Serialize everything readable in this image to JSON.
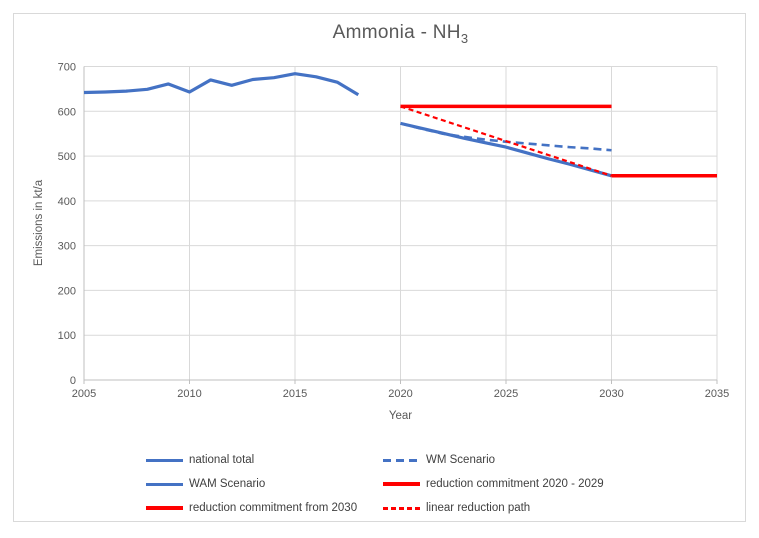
{
  "title": {
    "main": "Ammonia - NH",
    "subscript": "3"
  },
  "y_axis": {
    "label": "Emissions in kt/a"
  },
  "x_axis": {
    "label": "Year"
  },
  "colors": {
    "series_blue": "#4472C4",
    "series_red": "#FF0000",
    "gridline": "#d9d9d9",
    "axis_line": "#bfbfbf",
    "tick_text": "#595959",
    "title_text": "#595959",
    "legend_text": "#404040"
  },
  "chart_data": {
    "type": "line",
    "title": "Ammonia - NH3",
    "xlabel": "Year",
    "ylabel": "Emissions in kt/a",
    "xlim": [
      2005,
      2035
    ],
    "ylim": [
      0,
      700
    ],
    "x_ticks": [
      2005,
      2010,
      2015,
      2020,
      2025,
      2030,
      2035
    ],
    "y_ticks": [
      0,
      100,
      200,
      300,
      400,
      500,
      600,
      700
    ],
    "grid": true,
    "legend_position": "bottom",
    "series": [
      {
        "id": "national-total",
        "name": "national total",
        "color": "#4472C4",
        "style": "solid",
        "width": 3.2,
        "dash": "",
        "x": [
          2005,
          2006,
          2007,
          2008,
          2009,
          2010,
          2011,
          2012,
          2013,
          2014,
          2015,
          2016,
          2017,
          2018
        ],
        "values": [
          642,
          643,
          645,
          649,
          661,
          643,
          670,
          658,
          671,
          675,
          684,
          677,
          665,
          637
        ]
      },
      {
        "id": "wm-scenario",
        "name": "WM Scenario",
        "color": "#4472C4",
        "style": "dashed",
        "width": 2.6,
        "dash": "8 5",
        "x": [
          2020,
          2021,
          2022,
          2023,
          2024,
          2025,
          2026,
          2027,
          2028,
          2029,
          2030
        ],
        "values": [
          573,
          561,
          550,
          543,
          537,
          532,
          528,
          524,
          520,
          517,
          513
        ]
      },
      {
        "id": "wam-scenario",
        "name": "WAM Scenario",
        "color": "#4472C4",
        "style": "solid",
        "width": 3.2,
        "dash": "",
        "x": [
          2020,
          2021,
          2022,
          2023,
          2024,
          2025,
          2026,
          2027,
          2028,
          2029,
          2030
        ],
        "values": [
          573,
          562,
          551,
          540,
          530,
          520,
          507,
          494,
          482,
          469,
          456
        ]
      },
      {
        "id": "reduction-commitment-2020-2029",
        "name": "reduction commitment 2020 - 2029",
        "color": "#FF0000",
        "style": "solid",
        "width": 3.5,
        "dash": "",
        "x": [
          2020,
          2030
        ],
        "values": [
          611,
          611
        ]
      },
      {
        "id": "reduction-commitment-from-2030",
        "name": "reduction commitment from 2030",
        "color": "#FF0000",
        "style": "solid",
        "width": 3.5,
        "dash": "",
        "x": [
          2030,
          2035
        ],
        "values": [
          456,
          456
        ]
      },
      {
        "id": "linear-reduction-path",
        "name": "linear reduction path",
        "color": "#FF0000",
        "style": "dashed",
        "width": 2.2,
        "dash": "5 3.5",
        "x": [
          2020,
          2030
        ],
        "values": [
          611,
          456
        ]
      }
    ]
  },
  "legend": {
    "items": [
      {
        "label": "national total",
        "swatch": "blue-solid"
      },
      {
        "label": "WM Scenario",
        "swatch": "blue-dash"
      },
      {
        "label": "WAM Scenario",
        "swatch": "blue-solid"
      },
      {
        "label": "reduction commitment 2020 - 2029",
        "swatch": "red-solid"
      },
      {
        "label": "reduction commitment from 2030",
        "swatch": "red-solid"
      },
      {
        "label": "linear reduction path",
        "swatch": "red-dash"
      }
    ]
  }
}
